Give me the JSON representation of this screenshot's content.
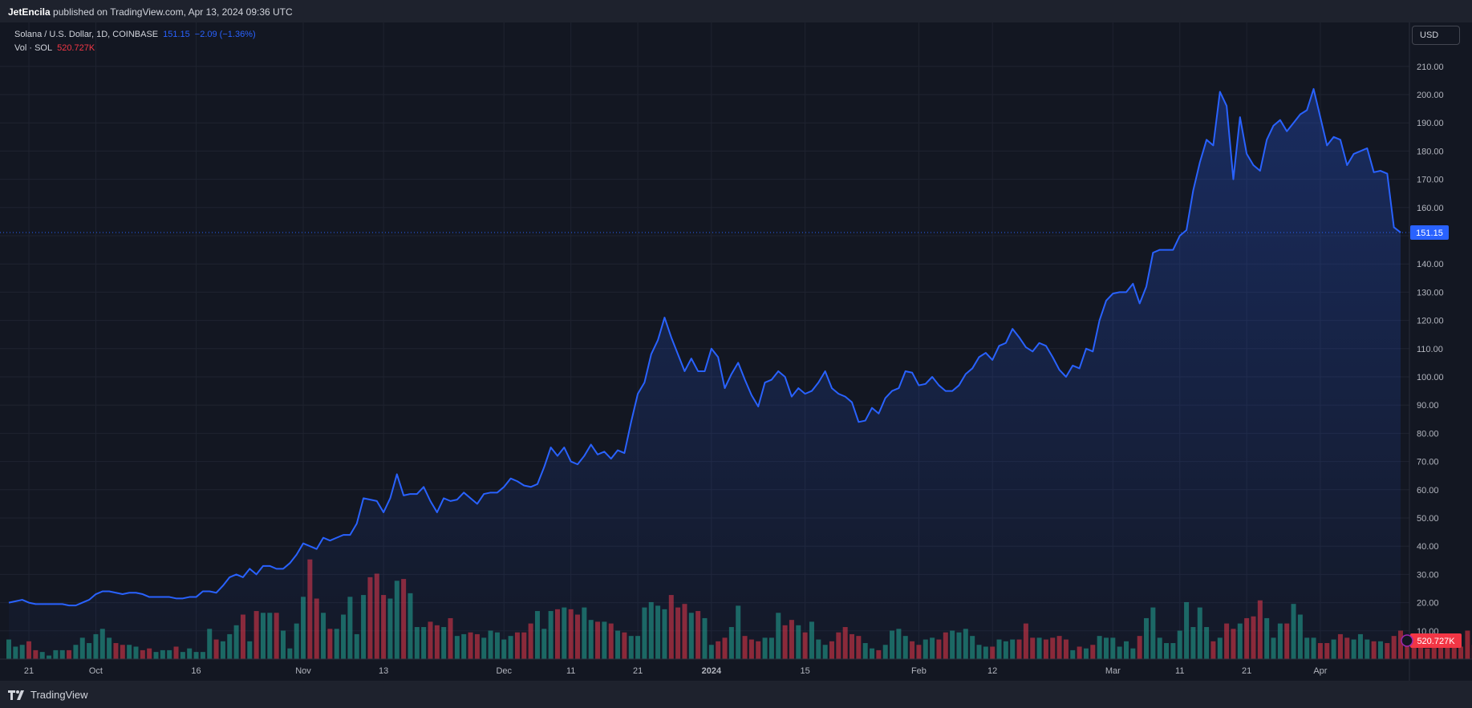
{
  "header": {
    "author": "JetEncila",
    "published_text": "published on TradingView.com, Apr 13, 2024 09:36 UTC"
  },
  "legend": {
    "symbol": "Solana / U.S. Dollar, 1D, COINBASE",
    "price": "151.15",
    "change": "−2.09 (−1.36%)",
    "volume_label": "Vol · SOL",
    "volume_value": "520.727K"
  },
  "currency_button": "USD",
  "footer_brand": "TradingView",
  "colors": {
    "line": "#2962ff",
    "up": "#22ab94",
    "down": "#f23645",
    "background": "#131722"
  },
  "chart_data": {
    "type": "area",
    "title": "Solana / U.S. Dollar, 1D, COINBASE",
    "ylim": [
      0,
      215
    ],
    "y_ticks": [
      10,
      20,
      30,
      40,
      50,
      60,
      70,
      80,
      90,
      100,
      110,
      120,
      130,
      140,
      150,
      160,
      170,
      180,
      190,
      200,
      210
    ],
    "y_tick_labels": [
      "10.00",
      "20.00",
      "30.00",
      "40.00",
      "50.00",
      "60.00",
      "70.00",
      "80.00",
      "90.00",
      "100.00",
      "110.00",
      "120.00",
      "130.00",
      "140.00",
      "150.00",
      "160.00",
      "170.00",
      "180.00",
      "190.00",
      "200.00",
      "210.00"
    ],
    "x_ticks": [
      {
        "label": "21",
        "date": "2023-09-21"
      },
      {
        "label": "Oct",
        "date": "2023-10-01"
      },
      {
        "label": "16",
        "date": "2023-10-16"
      },
      {
        "label": "Nov",
        "date": "2023-11-01"
      },
      {
        "label": "13",
        "date": "2023-11-13"
      },
      {
        "label": "Dec",
        "date": "2023-12-01"
      },
      {
        "label": "11",
        "date": "2023-12-11"
      },
      {
        "label": "21",
        "date": "2023-12-21"
      },
      {
        "label": "2024",
        "date": "2024-01-01"
      },
      {
        "label": "15",
        "date": "2024-01-15"
      },
      {
        "label": "Feb",
        "date": "2024-02-01"
      },
      {
        "label": "12",
        "date": "2024-02-12"
      },
      {
        "label": "Mar",
        "date": "2024-03-01"
      },
      {
        "label": "11",
        "date": "2024-03-11"
      },
      {
        "label": "21",
        "date": "2024-03-21"
      },
      {
        "label": "Apr",
        "date": "2024-04-01"
      }
    ],
    "first_date": "2023-09-18",
    "last_price": 151.15,
    "last_price_label": "151.15",
    "last_volume_label": "520.727K",
    "series": [
      {
        "type": "line",
        "close": [
          20,
          20.5,
          21,
          20,
          19.5,
          19.5,
          19.5,
          19.5,
          19.5,
          19,
          19,
          20,
          21,
          23,
          24,
          24,
          23.5,
          23,
          23.5,
          23.5,
          23,
          22,
          22,
          22,
          22,
          21.5,
          21.5,
          22,
          22,
          24,
          24,
          23.5,
          26,
          29,
          30,
          29,
          32,
          30,
          33,
          33,
          32,
          32,
          34,
          37,
          41,
          40,
          39,
          43,
          42,
          43,
          44,
          44,
          48,
          57,
          56.5,
          56,
          52,
          57,
          65.5,
          58,
          58.5,
          58.5,
          61,
          56,
          52,
          57,
          56,
          56.5,
          59,
          57,
          55,
          58.5,
          59,
          59,
          61,
          64,
          63,
          61.5,
          61,
          62,
          68,
          75,
          72,
          75,
          70,
          69,
          72,
          76,
          72.5,
          73.5,
          71,
          74,
          73,
          84,
          94,
          98,
          108,
          113,
          121,
          114,
          108,
          102,
          106.5,
          102,
          102,
          110,
          107,
          96,
          101,
          105,
          99,
          93.5,
          89.5,
          98,
          99,
          102,
          100,
          93,
          96,
          94,
          95,
          98,
          102,
          96,
          94,
          93,
          91,
          84,
          84.5,
          89,
          87,
          92.5,
          95,
          96,
          102,
          101.5,
          97,
          97.5,
          100,
          97,
          95,
          95,
          97,
          101,
          103,
          107,
          108.5,
          106,
          111,
          112,
          117,
          114,
          110.5,
          109,
          112,
          111,
          107,
          102.5,
          100,
          104,
          103,
          110,
          109,
          120,
          127,
          129.5,
          130,
          130,
          133,
          126,
          132,
          144,
          145,
          145,
          145,
          150,
          152,
          166,
          176,
          184,
          182,
          201,
          196,
          170,
          192,
          179,
          175,
          173,
          184,
          189,
          191,
          187,
          190,
          193,
          194.5,
          202,
          192,
          182,
          185,
          184,
          175,
          179,
          180,
          181,
          172.5,
          173,
          172,
          153,
          151.15
        ]
      },
      {
        "type": "bar",
        "name": "Vol · SOL",
        "volume": [
          11,
          7,
          8,
          10,
          5,
          4,
          2,
          5,
          5,
          5,
          8,
          12,
          9,
          14,
          17,
          12,
          9,
          8,
          8,
          7,
          5,
          6,
          4,
          5,
          5,
          7,
          4,
          6,
          4,
          4,
          17,
          11,
          10,
          14,
          19,
          25,
          10,
          27,
          26,
          26,
          26,
          16,
          6,
          20,
          35,
          56,
          34,
          26,
          17,
          17,
          25,
          35,
          14,
          36,
          46,
          48,
          36,
          34,
          44,
          45,
          37,
          18,
          18,
          21,
          19,
          18,
          23,
          13,
          14,
          15,
          14,
          12,
          16,
          15,
          11,
          13,
          15,
          15,
          20,
          27,
          17,
          27,
          28,
          29,
          28,
          25,
          29,
          22,
          21,
          21,
          20,
          16,
          15,
          13,
          13,
          29,
          32,
          30,
          28,
          36,
          29,
          31,
          26,
          27,
          23,
          8,
          10,
          12,
          18,
          30,
          13,
          11,
          10,
          12,
          12,
          26,
          19,
          22,
          19,
          15,
          21,
          11,
          8,
          10,
          15,
          18,
          14,
          13,
          9,
          6,
          5,
          8,
          16,
          17,
          13,
          10,
          8,
          11,
          12,
          11,
          15,
          16,
          15,
          17,
          13,
          8,
          7,
          7,
          11,
          10,
          11,
          11,
          20,
          12,
          12,
          11,
          12,
          13,
          11,
          5,
          7,
          6,
          8,
          13,
          12,
          12,
          7,
          10,
          6,
          13,
          23,
          29,
          12,
          9,
          9,
          16,
          32,
          18,
          29,
          18,
          10,
          12,
          20,
          17,
          20,
          23,
          24,
          33,
          23,
          12,
          20,
          20,
          31,
          25,
          12,
          12,
          9,
          9,
          11,
          14,
          12,
          11,
          14,
          11,
          10,
          10,
          9,
          13,
          16,
          9,
          10,
          13,
          6,
          7,
          9,
          10,
          11,
          7,
          16,
          8
        ]
      }
    ]
  }
}
